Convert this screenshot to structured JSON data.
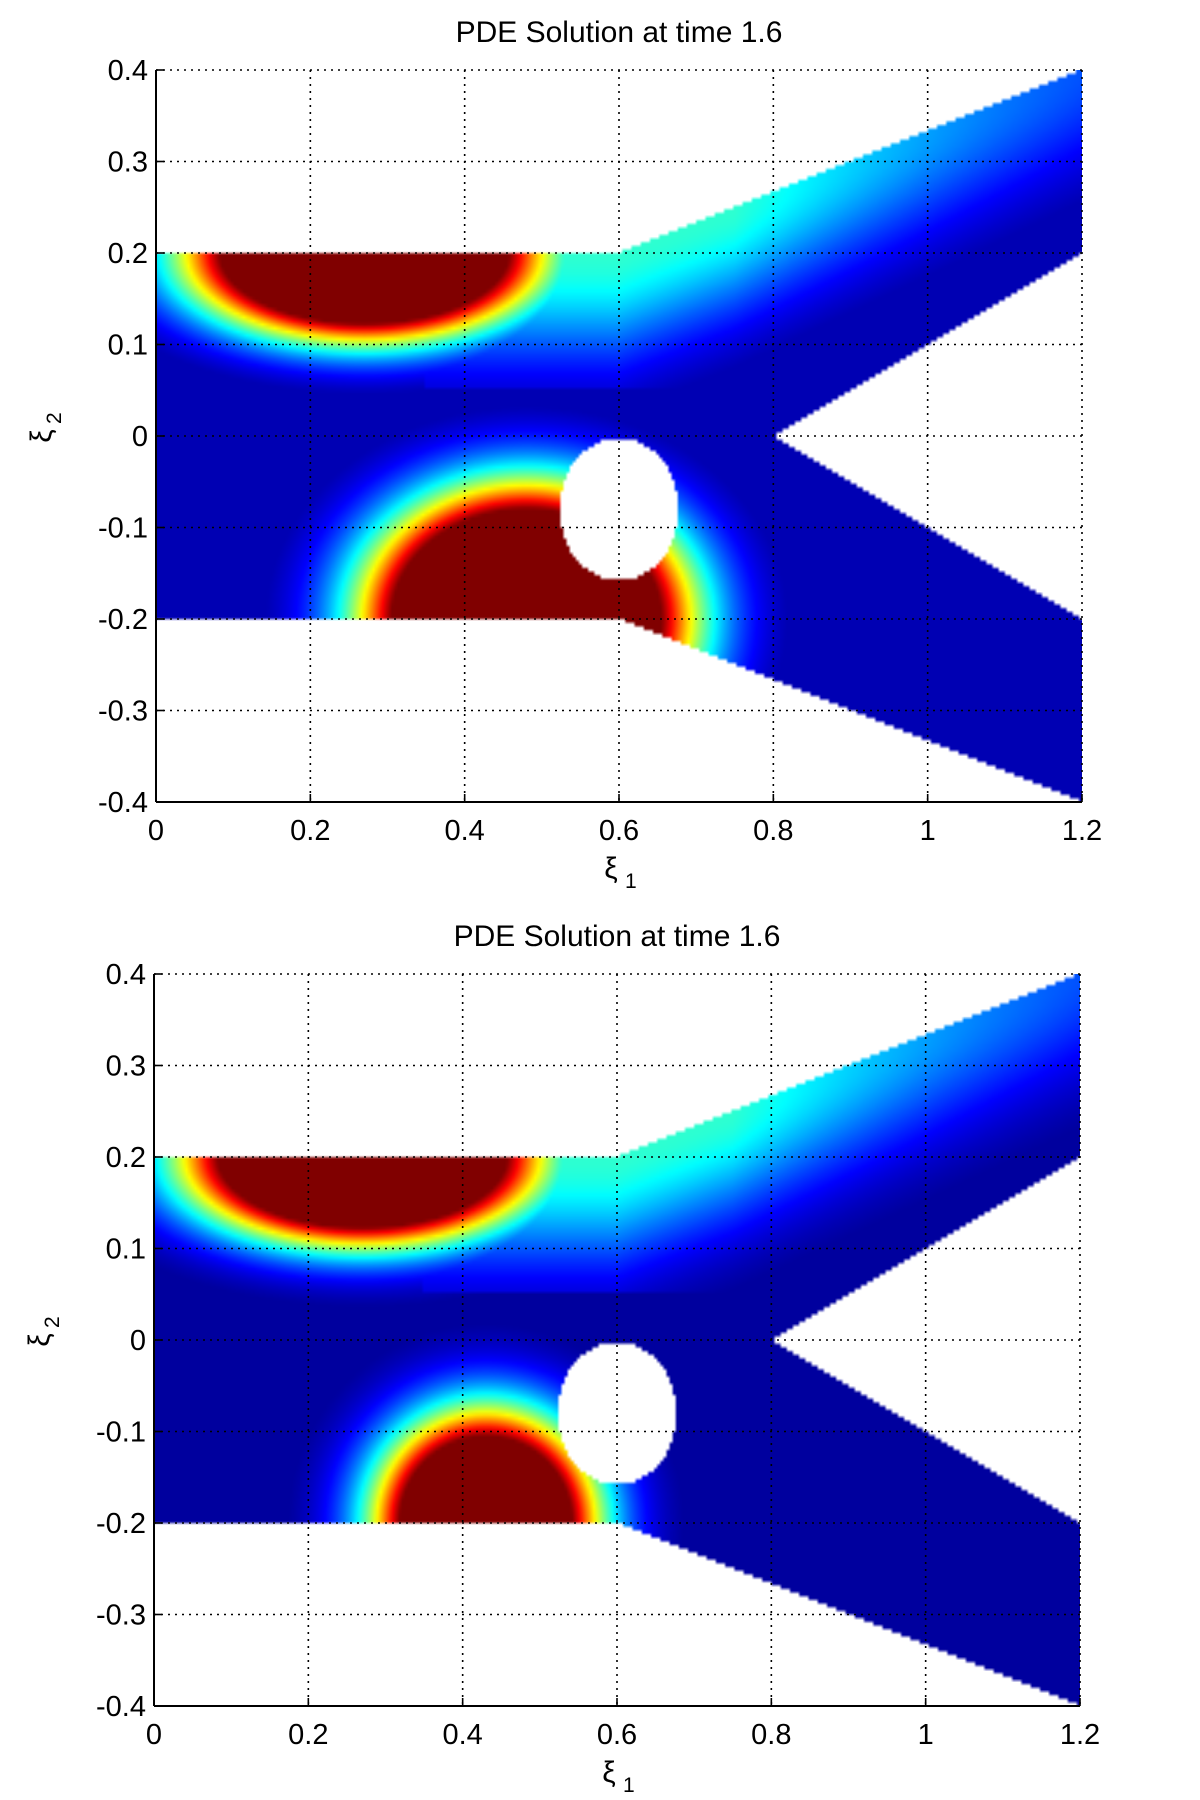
{
  "chart_data": [
    {
      "type": "heatmap",
      "title": "PDE Solution at time 1.6",
      "xlabel": "ξ",
      "xlabel_sub": "1",
      "ylabel": "ξ",
      "ylabel_sub": "2",
      "xlim": [
        0,
        1.2
      ],
      "ylim": [
        -0.4,
        0.4
      ],
      "xticks": [
        0,
        0.2,
        0.4,
        0.6,
        0.8,
        1,
        1.2
      ],
      "yticks": [
        -0.4,
        -0.3,
        -0.2,
        -0.1,
        0,
        0.1,
        0.2,
        0.3,
        0.4
      ],
      "xtick_labels": [
        "0",
        "0.2",
        "0.4",
        "0.6",
        "0.8",
        "1",
        "1.2"
      ],
      "ytick_labels": [
        "-0.4",
        "-0.3",
        "-0.2",
        "-0.1",
        "0",
        "0.1",
        "0.2",
        "0.3",
        "0.4"
      ],
      "grid": true,
      "colormap": "jet",
      "domain_outline": [
        [
          0,
          0.2
        ],
        [
          0.6,
          0.2
        ],
        [
          1.2,
          0.4
        ],
        [
          1.2,
          0.2
        ],
        [
          0.8,
          0
        ],
        [
          1.2,
          -0.2
        ],
        [
          1.2,
          -0.4
        ],
        [
          0.6,
          -0.2
        ],
        [
          0,
          -0.2
        ]
      ],
      "hole": {
        "cx": 0.6,
        "cy": -0.08,
        "rx": 0.077,
        "ry": 0.078
      },
      "hot_regions": [
        {
          "cx": 0.27,
          "cy": 0.2,
          "rx": 0.17,
          "ry": 0.07,
          "spread": 0.16
        },
        {
          "cx": 0.48,
          "cy": -0.2,
          "rx": 0.16,
          "ry": 0.11,
          "spread": 0.14
        }
      ],
      "background_level": 0.05
    },
    {
      "type": "heatmap",
      "title": "PDE Solution at time 1.6",
      "xlabel": "ξ",
      "xlabel_sub": "1",
      "ylabel": "ξ",
      "ylabel_sub": "2",
      "xlim": [
        0,
        1.2
      ],
      "ylim": [
        -0.4,
        0.4
      ],
      "xticks": [
        0,
        0.2,
        0.4,
        0.6,
        0.8,
        1,
        1.2
      ],
      "yticks": [
        -0.4,
        -0.3,
        -0.2,
        -0.1,
        0,
        0.1,
        0.2,
        0.3,
        0.4
      ],
      "xtick_labels": [
        "0",
        "0.2",
        "0.4",
        "0.6",
        "0.8",
        "1",
        "1.2"
      ],
      "ytick_labels": [
        "-0.4",
        "-0.3",
        "-0.2",
        "-0.1",
        "0",
        "0.1",
        "0.2",
        "0.3",
        "0.4"
      ],
      "grid": true,
      "colormap": "jet",
      "domain_outline": [
        [
          0,
          0.2
        ],
        [
          0.6,
          0.2
        ],
        [
          1.2,
          0.4
        ],
        [
          1.2,
          0.2
        ],
        [
          0.8,
          0
        ],
        [
          1.2,
          -0.2
        ],
        [
          1.2,
          -0.4
        ],
        [
          0.6,
          -0.2
        ],
        [
          0,
          -0.2
        ]
      ],
      "hole": {
        "cx": 0.6,
        "cy": -0.08,
        "rx": 0.077,
        "ry": 0.078
      },
      "hot_regions": [
        {
          "cx": 0.27,
          "cy": 0.2,
          "rx": 0.17,
          "ry": 0.07,
          "spread": 0.16
        },
        {
          "cx": 0.43,
          "cy": -0.2,
          "rx": 0.1,
          "ry": 0.085,
          "spread": 0.11
        }
      ],
      "background_level": 0.03
    }
  ]
}
